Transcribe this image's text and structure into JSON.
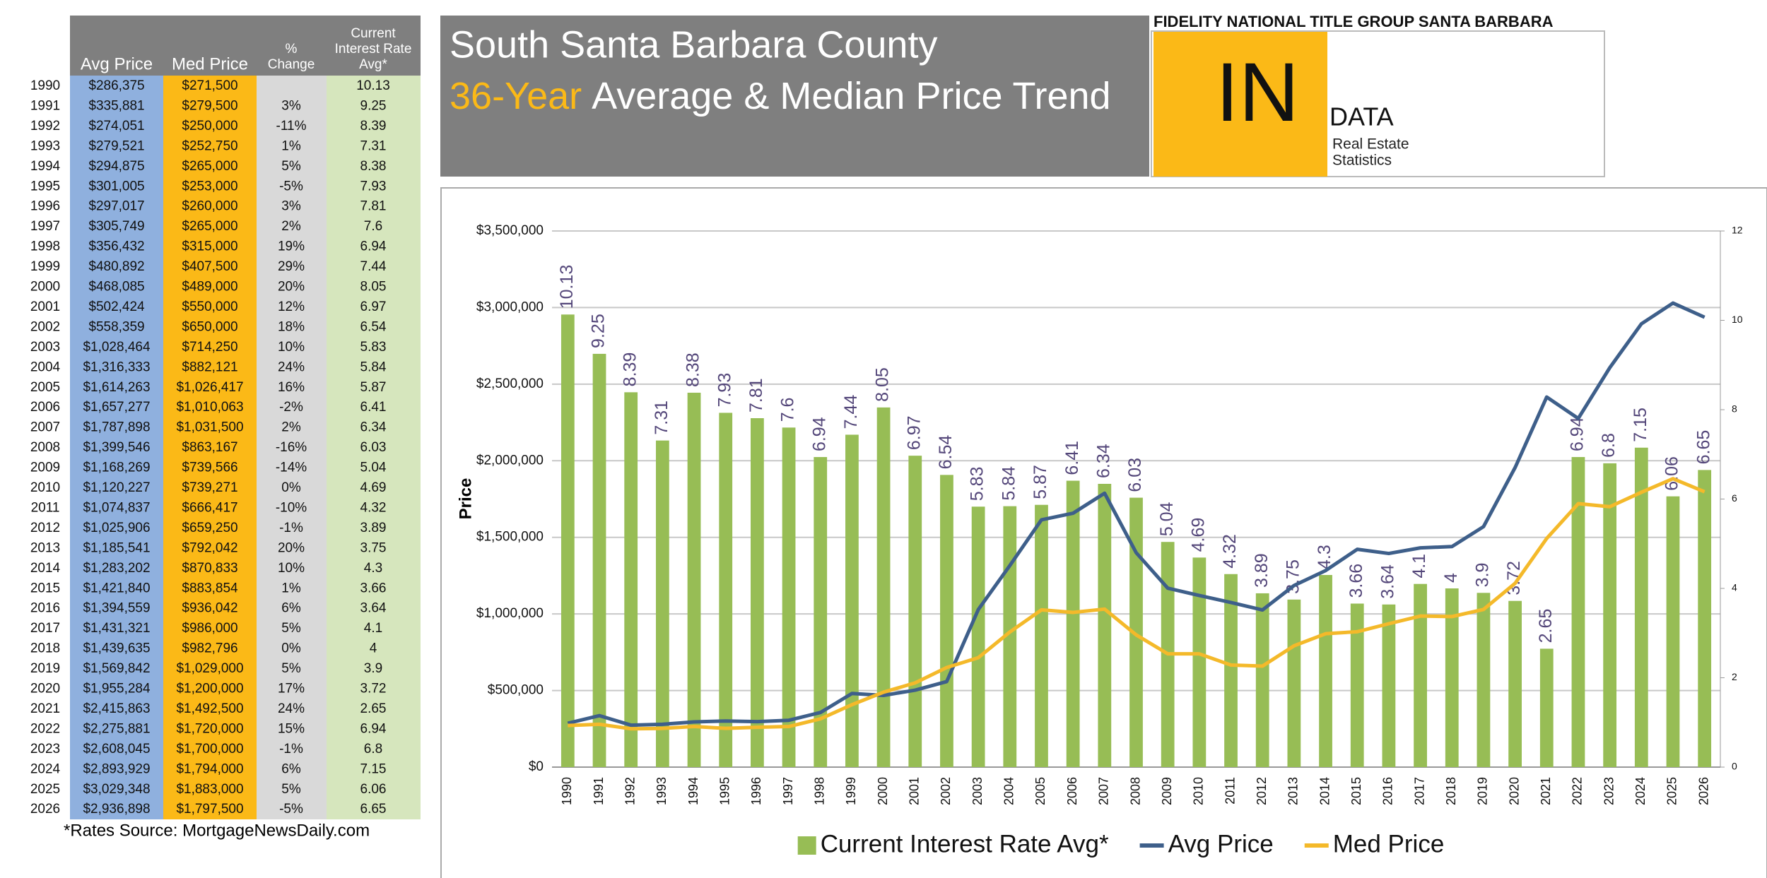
{
  "header": {
    "title_line1": "South Santa Barbara County",
    "title_highlight": "36-Year",
    "title_rest": "Average & Median Price Trend"
  },
  "logo": {
    "company": "FIDELITY NATIONAL TITLE GROUP SANTA BARBARA",
    "big": "IN",
    "data": "DATA",
    "sub1": "Real Estate",
    "sub2": "Statistics"
  },
  "table": {
    "columns": [
      [
        "Avg Price"
      ],
      [
        "Med Price"
      ],
      [
        "%",
        "Change"
      ],
      [
        "Current",
        "Interest Rate",
        "Avg*"
      ]
    ],
    "rows": [
      [
        "1990",
        "$286,375",
        "$271,500",
        null,
        "10.13"
      ],
      [
        "1991",
        "$335,881",
        "$279,500",
        "3%",
        "9.25"
      ],
      [
        "1992",
        "$274,051",
        "$250,000",
        "-11%",
        "8.39"
      ],
      [
        "1993",
        "$279,521",
        "$252,750",
        "1%",
        "7.31"
      ],
      [
        "1994",
        "$294,875",
        "$265,000",
        "5%",
        "8.38"
      ],
      [
        "1995",
        "$301,005",
        "$253,000",
        "-5%",
        "7.93"
      ],
      [
        "1996",
        "$297,017",
        "$260,000",
        "3%",
        "7.81"
      ],
      [
        "1997",
        "$305,749",
        "$265,000",
        "2%",
        "7.6"
      ],
      [
        "1998",
        "$356,432",
        "$315,000",
        "19%",
        "6.94"
      ],
      [
        "1999",
        "$480,892",
        "$407,500",
        "29%",
        "7.44"
      ],
      [
        "2000",
        "$468,085",
        "$489,000",
        "20%",
        "8.05"
      ],
      [
        "2001",
        "$502,424",
        "$550,000",
        "12%",
        "6.97"
      ],
      [
        "2002",
        "$558,359",
        "$650,000",
        "18%",
        "6.54"
      ],
      [
        "2003",
        "$1,028,464",
        "$714,250",
        "10%",
        "5.83"
      ],
      [
        "2004",
        "$1,316,333",
        "$882,121",
        "24%",
        "5.84"
      ],
      [
        "2005",
        "$1,614,263",
        "$1,026,417",
        "16%",
        "5.87"
      ],
      [
        "2006",
        "$1,657,277",
        "$1,010,063",
        "-2%",
        "6.41"
      ],
      [
        "2007",
        "$1,787,898",
        "$1,031,500",
        "2%",
        "6.34"
      ],
      [
        "2008",
        "$1,399,546",
        "$863,167",
        "-16%",
        "6.03"
      ],
      [
        "2009",
        "$1,168,269",
        "$739,566",
        "-14%",
        "5.04"
      ],
      [
        "2010",
        "$1,120,227",
        "$739,271",
        "0%",
        "4.69"
      ],
      [
        "2011",
        "$1,074,837",
        "$666,417",
        "-10%",
        "4.32"
      ],
      [
        "2012",
        "$1,025,906",
        "$659,250",
        "-1%",
        "3.89"
      ],
      [
        "2013",
        "$1,185,541",
        "$792,042",
        "20%",
        "3.75"
      ],
      [
        "2014",
        "$1,283,202",
        "$870,833",
        "10%",
        "4.3"
      ],
      [
        "2015",
        "$1,421,840",
        "$883,854",
        "1%",
        "3.66"
      ],
      [
        "2016",
        "$1,394,559",
        "$936,042",
        "6%",
        "3.64"
      ],
      [
        "2017",
        "$1,431,321",
        "$986,000",
        "5%",
        "4.1"
      ],
      [
        "2018",
        "$1,439,635",
        "$982,796",
        "0%",
        "4"
      ],
      [
        "2019",
        "$1,569,842",
        "$1,029,000",
        "5%",
        "3.9"
      ],
      [
        "2020",
        "$1,955,284",
        "$1,200,000",
        "17%",
        "3.72"
      ],
      [
        "2021",
        "$2,415,863",
        "$1,492,500",
        "24%",
        "2.65"
      ],
      [
        "2022",
        "$2,275,881",
        "$1,720,000",
        "15%",
        "6.94"
      ],
      [
        "2023",
        "$2,608,045",
        "$1,700,000",
        "-1%",
        "6.8"
      ],
      [
        "2024",
        "$2,893,929",
        "$1,794,000",
        "6%",
        "7.15"
      ],
      [
        "2025",
        "$3,029,348",
        "$1,883,000",
        "5%",
        "6.06"
      ],
      [
        "2026",
        "$2,936,898",
        "$1,797,500",
        "-5%",
        "6.65"
      ]
    ]
  },
  "footnote": "*Rates Source: MortgageNewsDaily.com",
  "chart_data": {
    "type": "bar",
    "ylabel": "Price",
    "categories": [
      "1990",
      "1991",
      "1992",
      "1993",
      "1994",
      "1995",
      "1996",
      "1997",
      "1998",
      "1999",
      "2000",
      "2001",
      "2002",
      "2003",
      "2004",
      "2005",
      "2006",
      "2007",
      "2008",
      "2009",
      "2010",
      "2011",
      "2012",
      "2013",
      "2014",
      "2015",
      "2016",
      "2017",
      "2018",
      "2019",
      "2020",
      "2021",
      "2022",
      "2023",
      "2024",
      "2025",
      "2026"
    ],
    "series": [
      {
        "name": "Current Interest Rate Avg*",
        "type": "bar",
        "axis": "y2",
        "color": "#97bd55",
        "label_color": "#54477a",
        "values": [
          10.13,
          9.25,
          8.39,
          7.31,
          8.38,
          7.93,
          7.81,
          7.6,
          6.94,
          7.44,
          8.05,
          6.97,
          6.54,
          5.83,
          5.84,
          5.87,
          6.41,
          6.34,
          6.03,
          5.04,
          4.69,
          4.32,
          3.89,
          3.75,
          4.3,
          3.66,
          3.64,
          4.1,
          4,
          3.9,
          3.72,
          2.65,
          6.94,
          6.8,
          7.15,
          6.06,
          6.65
        ]
      },
      {
        "name": "Avg Price",
        "type": "line",
        "color": "#3e5f8a",
        "values": [
          286375,
          335881,
          274051,
          279521,
          294875,
          301005,
          297017,
          305749,
          356432,
          480892,
          468085,
          502424,
          558359,
          1028464,
          1316333,
          1614263,
          1657277,
          1787898,
          1399546,
          1168269,
          1120227,
          1074837,
          1025906,
          1185541,
          1283202,
          1421840,
          1394559,
          1431321,
          1439635,
          1569842,
          1955284,
          2415863,
          2275881,
          2608045,
          2893929,
          3029348,
          2936898
        ]
      },
      {
        "name": "Med Price",
        "type": "line",
        "color": "#f4b92a",
        "values": [
          271500,
          279500,
          250000,
          252750,
          265000,
          253000,
          260000,
          265000,
          315000,
          407500,
          489000,
          550000,
          650000,
          714250,
          882121,
          1026417,
          1010063,
          1031500,
          863167,
          739566,
          739271,
          666417,
          659250,
          792042,
          870833,
          883854,
          936042,
          986000,
          982796,
          1029000,
          1200000,
          1492500,
          1720000,
          1700000,
          1794000,
          1883000,
          1797500
        ]
      }
    ],
    "ylim": [
      0,
      3500000
    ],
    "yticks": [
      {
        "value": 0,
        "label": "$0"
      },
      {
        "value": 500000,
        "label": "$500,000"
      },
      {
        "value": 1000000,
        "label": "$1,000,000"
      },
      {
        "value": 1500000,
        "label": "$1,500,000"
      },
      {
        "value": 2000000,
        "label": "$2,000,000"
      },
      {
        "value": 2500000,
        "label": "$2,500,000"
      },
      {
        "value": 3000000,
        "label": "$3,000,000"
      },
      {
        "value": 3500000,
        "label": "$3,500,000"
      }
    ],
    "y2lim": [
      0,
      12
    ],
    "y2ticks": [
      0,
      2,
      4,
      6,
      8,
      10,
      12
    ],
    "grid": true,
    "legend": "bottom"
  }
}
